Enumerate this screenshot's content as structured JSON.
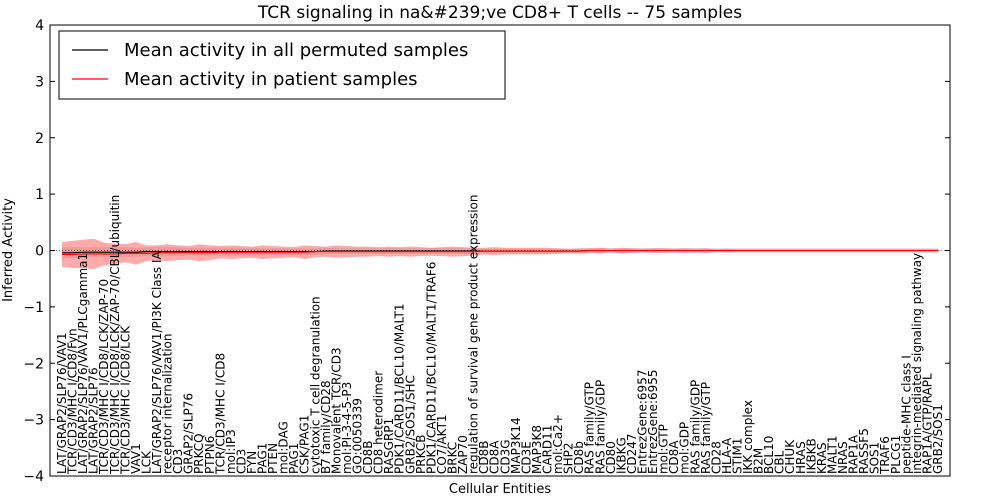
{
  "chart_data": {
    "type": "line",
    "title": "TCR signaling in na&#239;ve CD8+ T cells -- 75 samples",
    "xlabel": "Cellular Entities",
    "ylabel": "Inferred Activity",
    "ylim": [
      -4,
      4
    ],
    "yticks": [
      -4,
      -3,
      -2,
      -1,
      0,
      1,
      2,
      3,
      4
    ],
    "grid": false,
    "legend_position": "top-left",
    "categories": [
      "LAT/GRAP2/SLP76/VAV1",
      "TCR/CD3/MHC I/CD8/Fyn",
      "LAT/GRAP2/SLP76/VAV1/PLCgamma1",
      "LAT/GRAP2/SLP76",
      "TCR/CD3/MHC I/CD8/LCK/ZAP-70",
      "TCR/CD3/MHC I/CD8/LCK/ZAP-70/CBL/ubiquitin",
      "TCR/CD3/MHC I/CD8/LCK",
      "VAV1",
      "LCK",
      "LAT/GRAP2/SLP76/VAV1/PI3K Class IA",
      "receptor internalization",
      "CD3",
      "GRAP2/SLP76",
      "PRKCQ",
      "PTPN6",
      "TCR/CD3/MHC I/CD8",
      "mol:IP3",
      "CD3",
      "FYN",
      "PAG1",
      "PTEN",
      "mol:DAG",
      "PAG1",
      "CSK/PAG1",
      "cytotoxic T cell degranulation",
      "B7 family/CD28",
      "Monovalent TCR/CD3",
      "mol:PI-3-4-5-P3",
      "GO:0050339",
      "CD8B",
      "CD8 heterodimer",
      "RASGRP1",
      "PDK1/CARD11/BCL10/MALT1",
      "GRB2/SOS1/SHC",
      "PRKCB",
      "PDK1/CARD11/BCL10/MALT1/TRAF6",
      "CO7/AKT1",
      "BRKC",
      "ZAP70",
      "regulation of survival gene product expression",
      "CD8B",
      "CD8A",
      "CD3G",
      "MAP3K14",
      "CD3E",
      "MAP3K8",
      "CARD11",
      "mol:Ca2+",
      "SHP2",
      "CD8b",
      "RAS family/GTP",
      "RAS family/GDP",
      "CD80",
      "IKBKG",
      "CD247",
      "EntrezGene:6957",
      "EntrezGene:6955",
      "mol:GTP",
      "CD8A",
      "mol:GDP",
      "RAS family/GDP",
      "RAS family/GTP",
      "CD28",
      "HLA-A",
      "STIM1",
      "IKK complex",
      "B2M",
      "BCL10",
      "CBL",
      "CHUK",
      "HRAS",
      "IKBKB",
      "KRAS",
      "MALT1",
      "NRAS",
      "RAP1A",
      "RASSF5",
      "SOS1",
      "TRAF6",
      "PLCG1",
      "peptide-MHC class I",
      "integrin-mediated signaling pathway",
      "RAP1A/GTP/RAPL",
      "GRB2/SOS1"
    ],
    "series": [
      {
        "name": "Mean activity in all permuted samples",
        "color": "#000000",
        "values": [
          -0.04,
          -0.04,
          -0.03,
          -0.03,
          -0.03,
          -0.03,
          -0.03,
          -0.03,
          -0.02,
          -0.02,
          -0.02,
          -0.02,
          -0.02,
          -0.02,
          -0.02,
          -0.02,
          -0.02,
          -0.02,
          -0.02,
          -0.02,
          -0.02,
          -0.02,
          -0.02,
          -0.02,
          -0.02,
          -0.01,
          -0.01,
          -0.01,
          -0.01,
          -0.01,
          -0.01,
          -0.01,
          -0.01,
          -0.01,
          -0.01,
          -0.01,
          -0.01,
          -0.01,
          -0.01,
          -0.01,
          -0.01,
          -0.01,
          -0.01,
          -0.01,
          -0.01,
          -0.01,
          -0.01,
          -0.01,
          -0.01,
          -0.01,
          0,
          0,
          0,
          0,
          0,
          0,
          0,
          0,
          0,
          0,
          0,
          0,
          0,
          0,
          0,
          0,
          0,
          0,
          0,
          0,
          0,
          0,
          0,
          0,
          0,
          0,
          0,
          0,
          0,
          0,
          0,
          0,
          0,
          0
        ]
      },
      {
        "name": "Mean activity in patient samples",
        "color": "#ff0000",
        "values": [
          -0.07,
          -0.07,
          -0.06,
          -0.06,
          -0.06,
          -0.06,
          -0.05,
          -0.05,
          -0.05,
          -0.04,
          -0.04,
          -0.04,
          -0.04,
          -0.04,
          -0.04,
          -0.03,
          -0.03,
          -0.03,
          -0.03,
          -0.03,
          -0.03,
          -0.03,
          -0.03,
          -0.03,
          -0.02,
          -0.02,
          -0.02,
          -0.02,
          -0.02,
          -0.02,
          -0.02,
          -0.02,
          -0.02,
          -0.02,
          -0.02,
          -0.02,
          -0.02,
          -0.02,
          -0.02,
          -0.02,
          -0.01,
          -0.01,
          -0.01,
          -0.01,
          -0.01,
          -0.01,
          -0.01,
          -0.01,
          -0.01,
          -0.01,
          0,
          0,
          0,
          0,
          0,
          0,
          0,
          0,
          0,
          0,
          0,
          0,
          0,
          0,
          0,
          0,
          0,
          0,
          0,
          0,
          0,
          0,
          0,
          0,
          0,
          0,
          0,
          0,
          0,
          0,
          0,
          0,
          0,
          0
        ]
      }
    ],
    "bands": {
      "permuted_color": "#bbbbbb",
      "patient_color": "#ff6666",
      "permuted_halfwidth": [
        0.1,
        0.1,
        0.09,
        0.09,
        0.09,
        0.09,
        0.09,
        0.08,
        0.08,
        0.08,
        0.08,
        0.08,
        0.07,
        0.07,
        0.07,
        0.07,
        0.07,
        0.07,
        0.07,
        0.06,
        0.06,
        0.06,
        0.06,
        0.06,
        0.06,
        0.06,
        0.05,
        0.05,
        0.05,
        0.05,
        0.05,
        0.05,
        0.05,
        0.05,
        0.05,
        0.05,
        0.05,
        0.05,
        0.05,
        0.05,
        0.04,
        0.04,
        0.04,
        0.04,
        0.04,
        0.04,
        0.04,
        0.04,
        0.04,
        0.04,
        0.04,
        0.04,
        0.04,
        0.04,
        0.04,
        0.04,
        0.04,
        0.04,
        0.04,
        0.04,
        0.04,
        0.04,
        0.04,
        0.04,
        0.04,
        0.04,
        0.04,
        0.04,
        0.04,
        0.04,
        0.04,
        0.04,
        0.04,
        0.04,
        0.04,
        0.04,
        0.04,
        0.04,
        0.04,
        0.04,
        0.04,
        0.04,
        0.04,
        0.04
      ],
      "patient_halfwidth": [
        0.22,
        0.24,
        0.25,
        0.27,
        0.2,
        0.18,
        0.16,
        0.2,
        0.14,
        0.13,
        0.15,
        0.13,
        0.12,
        0.15,
        0.13,
        0.11,
        0.12,
        0.11,
        0.1,
        0.12,
        0.11,
        0.1,
        0.09,
        0.12,
        0.1,
        0.09,
        0.11,
        0.1,
        0.09,
        0.09,
        0.08,
        0.09,
        0.08,
        0.09,
        0.08,
        0.07,
        0.08,
        0.09,
        0.08,
        0.07,
        0.06,
        0.07,
        0.06,
        0.06,
        0.06,
        0.06,
        0.06,
        0.05,
        0.04,
        0.05,
        0.04,
        0.05,
        0.03,
        0.05,
        0.04,
        0.03,
        0.04,
        0.04,
        0.03,
        0.04,
        0.03,
        0.04,
        0.02,
        0.03,
        0.02,
        0.02,
        0.02,
        0.02,
        0.02,
        0.02,
        0.02,
        0.02,
        0.02,
        0.02,
        0.02,
        0.02,
        0.02,
        0.02,
        0.02,
        0.02,
        0.02,
        0.02,
        0.02,
        0.02
      ]
    }
  }
}
